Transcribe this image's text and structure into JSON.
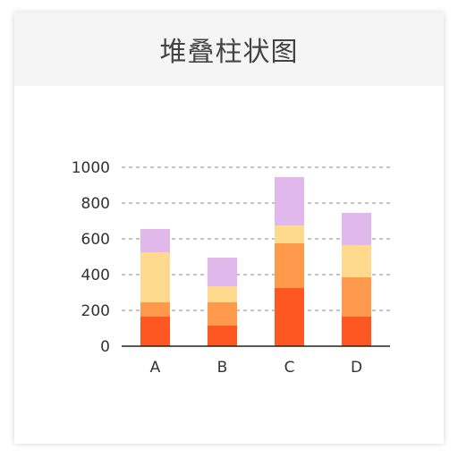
{
  "header": {
    "title": "堆叠柱状图"
  },
  "chart_data": {
    "type": "bar",
    "stacked": true,
    "categories": [
      "A",
      "B",
      "C",
      "D"
    ],
    "series": [
      {
        "values": [
          165,
          115,
          325,
          165
        ],
        "color": "#ff5722"
      },
      {
        "values": [
          80,
          130,
          250,
          220
        ],
        "color": "#ff9a4d"
      },
      {
        "values": [
          280,
          90,
          100,
          180
        ],
        "color": "#ffd98e"
      },
      {
        "values": [
          130,
          160,
          270,
          180
        ],
        "color": "#e0b8ec"
      }
    ],
    "yticks": [
      0,
      200,
      400,
      600,
      800,
      1000
    ],
    "ylim": [
      0,
      1000
    ],
    "grid": "dashed-horizontal",
    "legend": "none"
  }
}
